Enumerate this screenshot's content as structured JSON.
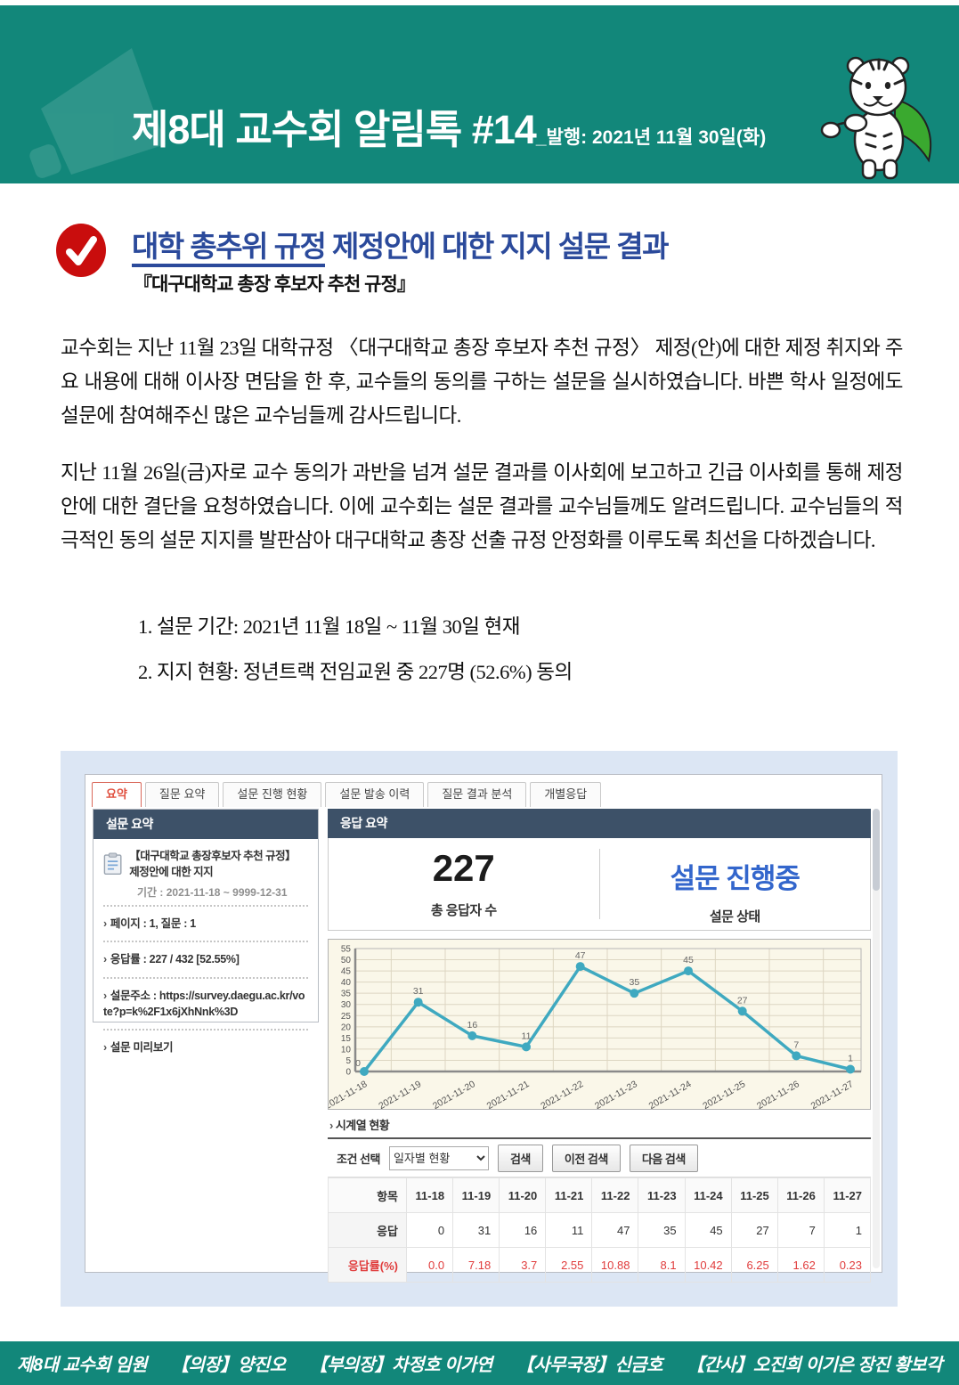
{
  "colors": {
    "banner_teal": "#12877a",
    "title_blue": "#2b4a9b",
    "badge_red": "#c90d0d",
    "panel_navy": "#3d5168",
    "status_blue": "#3366cc",
    "chart_line": "#3fa9c0",
    "rate_red": "#e03c3c",
    "shot_panel_bg": "#dce6f4"
  },
  "header": {
    "title": "제8대 교수회 알림톡 #14",
    "issue_info": "_발행: 2021년 11월 30일(화)"
  },
  "announcement": {
    "title_underlined": "대학 총추위 규정",
    "title_rest": " 제정안에 대한 지지 설문 결과",
    "subtitle": "『대구대학교 총장 후보자 추천 규정』",
    "paragraph1": "교수회는 지난 11월 23일 대학규정 〈대구대학교 총장 후보자 추천 규정〉 제정(안)에 대한 제정 취지와 주요 내용에 대해 이사장 면담을 한 후, 교수들의 동의를 구하는 설문을 실시하였습니다. 바쁜 학사 일정에도 설문에 참여해주신 많은 교수님들께 감사드립니다.",
    "paragraph2": "지난 11월 26일(금)자로 교수 동의가 과반을 넘겨 설문 결과를 이사회에 보고하고 긴급 이사회를 통해 제정안에 대한 결단을 요청하였습니다. 이에 교수회는 설문 결과를 교수님들께도 알려드립니다. 교수님들의 적극적인 동의 설문 지지를 발판삼아 대구대학교 총장 선출 규정 안정화를 이루도록 최선을 다하겠습니다.",
    "list": [
      "1. 설문 기간: 2021년 11월 18일 ~ 11월 30일 현재",
      "2. 지지 현황: 정년트랙 전임교원 중 227명 (52.6%) 동의"
    ]
  },
  "survey_ui": {
    "tabs": [
      {
        "label": "요약",
        "active": true
      },
      {
        "label": "질문 요약",
        "active": false
      },
      {
        "label": "설문 진행 현황",
        "active": false
      },
      {
        "label": "설문 발송 이력",
        "active": false
      },
      {
        "label": "질문 결과 분석",
        "active": false
      },
      {
        "label": "개별응답",
        "active": false
      }
    ],
    "summary_panel": {
      "title": "설문 요약",
      "survey_title": "【대구대학교 총장후보자 추천 규정】 제정안에 대한 지지",
      "period": "기간 : 2021-11-18 ~ 9999-12-31",
      "items": [
        "페이지 : 1, 질문 : 1",
        "응답률 : 227 / 432 [52.55%]",
        "설문주소 : https://survey.daegu.ac.kr/vote?p=k%2F1x6jXhNnk%3D",
        "설문 미리보기"
      ]
    },
    "response_panel": {
      "title": "응답 요약",
      "total_value": "227",
      "total_label": "총 응답자 수",
      "status_value": "설문 진행중",
      "status_label": "설문 상태"
    },
    "timeseries": {
      "section_label": "시계열 현황",
      "condition_label": "조건 선택",
      "condition_value": "일자별 현황",
      "buttons": [
        "검색",
        "이전 검색",
        "다음 검색"
      ],
      "table_header": [
        "항목",
        "11-18",
        "11-19",
        "11-20",
        "11-21",
        "11-22",
        "11-23",
        "11-24",
        "11-25",
        "11-26",
        "11-27"
      ],
      "rows": [
        {
          "label": "응답",
          "values": [
            "0",
            "31",
            "16",
            "11",
            "47",
            "35",
            "45",
            "27",
            "7",
            "1"
          ],
          "red": false
        },
        {
          "label": "응답률(%)",
          "values": [
            "0.0",
            "7.18",
            "3.7",
            "2.55",
            "10.88",
            "8.1",
            "10.42",
            "6.25",
            "1.62",
            "0.23"
          ],
          "red": true
        }
      ]
    }
  },
  "chart_data": {
    "type": "line",
    "x": [
      "2021-11-18",
      "2021-11-19",
      "2021-11-20",
      "2021-11-21",
      "2021-11-22",
      "2021-11-23",
      "2021-11-24",
      "2021-11-25",
      "2021-11-26",
      "2021-11-27"
    ],
    "values": [
      0,
      31,
      16,
      11,
      47,
      35,
      45,
      27,
      7,
      1
    ],
    "title": "",
    "xlabel": "",
    "ylabel": "",
    "ylim": [
      0,
      55
    ],
    "ytick_step": 5,
    "grid": true,
    "legend": "none",
    "line_color": "#3fa9c0",
    "plot_bg": "#faf7e9"
  },
  "footer": {
    "segments": [
      "제8대 교수회 임원",
      "【의장】양진오",
      "【부의장】차정호 이가연",
      "【사무국장】신금호",
      "【간사】오진희 이기은 장진 황보각"
    ]
  }
}
